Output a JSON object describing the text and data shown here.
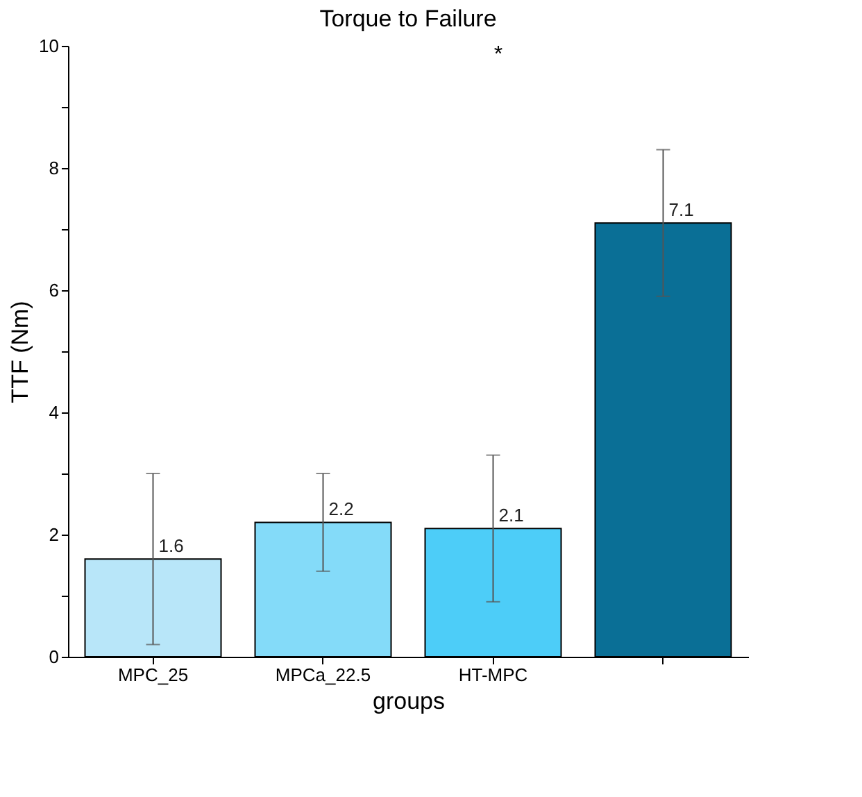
{
  "chart_data": {
    "type": "bar",
    "title": "Torque to Failure",
    "xlabel": "groups",
    "ylabel": "TTF (Nm)",
    "categories": [
      "MPC_25",
      "MPCa_22.5",
      "HT-MPC",
      null
    ],
    "values": [
      1.6,
      2.2,
      2.1,
      7.1
    ],
    "errors": [
      1.4,
      0.8,
      1.2,
      1.2
    ],
    "colors": [
      "#b8e6f9",
      "#84dbf9",
      "#4dcdf8",
      "#0a6f96"
    ],
    "ylim": [
      0,
      10
    ],
    "yticks": [
      0,
      {
        "value": 1,
        "label": null
      },
      2,
      {
        "value": 3,
        "label": null
      },
      4,
      {
        "value": 5,
        "label": null
      },
      6,
      {
        "value": 7,
        "label": null
      },
      8,
      {
        "value": 9,
        "label": null
      },
      10
    ],
    "value_labels": [
      "1.6",
      "2.2",
      "2.1",
      "7.1"
    ],
    "grid": false,
    "annotations": [
      "*"
    ]
  }
}
